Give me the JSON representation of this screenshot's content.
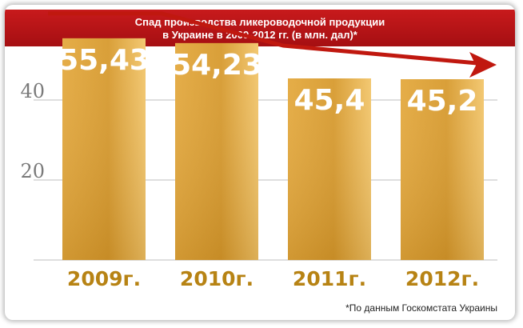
{
  "title": {
    "line1": "Спад производства ликероводочной продукции",
    "line2": "в Украине в 2009-2012 гг.  (в млн. дал)*"
  },
  "source_note": "*По данным Госкомстата Украины",
  "colors": {
    "banner": "#b5161a",
    "bar_light": "#f2c56a",
    "bar_dark": "#c8901e",
    "value_label": "#ffffff",
    "category_label": "#b78314",
    "trend_arrow": "#c0180f",
    "gridline": "#bdbdbd",
    "axis_text": "#7a7a7a"
  },
  "chart_data": {
    "type": "bar",
    "categories": [
      "2009г.",
      "2010г.",
      "2011г.",
      "2012г."
    ],
    "values": [
      55.43,
      54.23,
      45.4,
      45.2
    ],
    "value_labels": [
      "55,43",
      "54,23",
      "45,4",
      "45,2"
    ],
    "yticks": [
      20,
      40
    ],
    "ylim": [
      0,
      60
    ],
    "grid": true,
    "trend_arrow": "decreasing"
  }
}
